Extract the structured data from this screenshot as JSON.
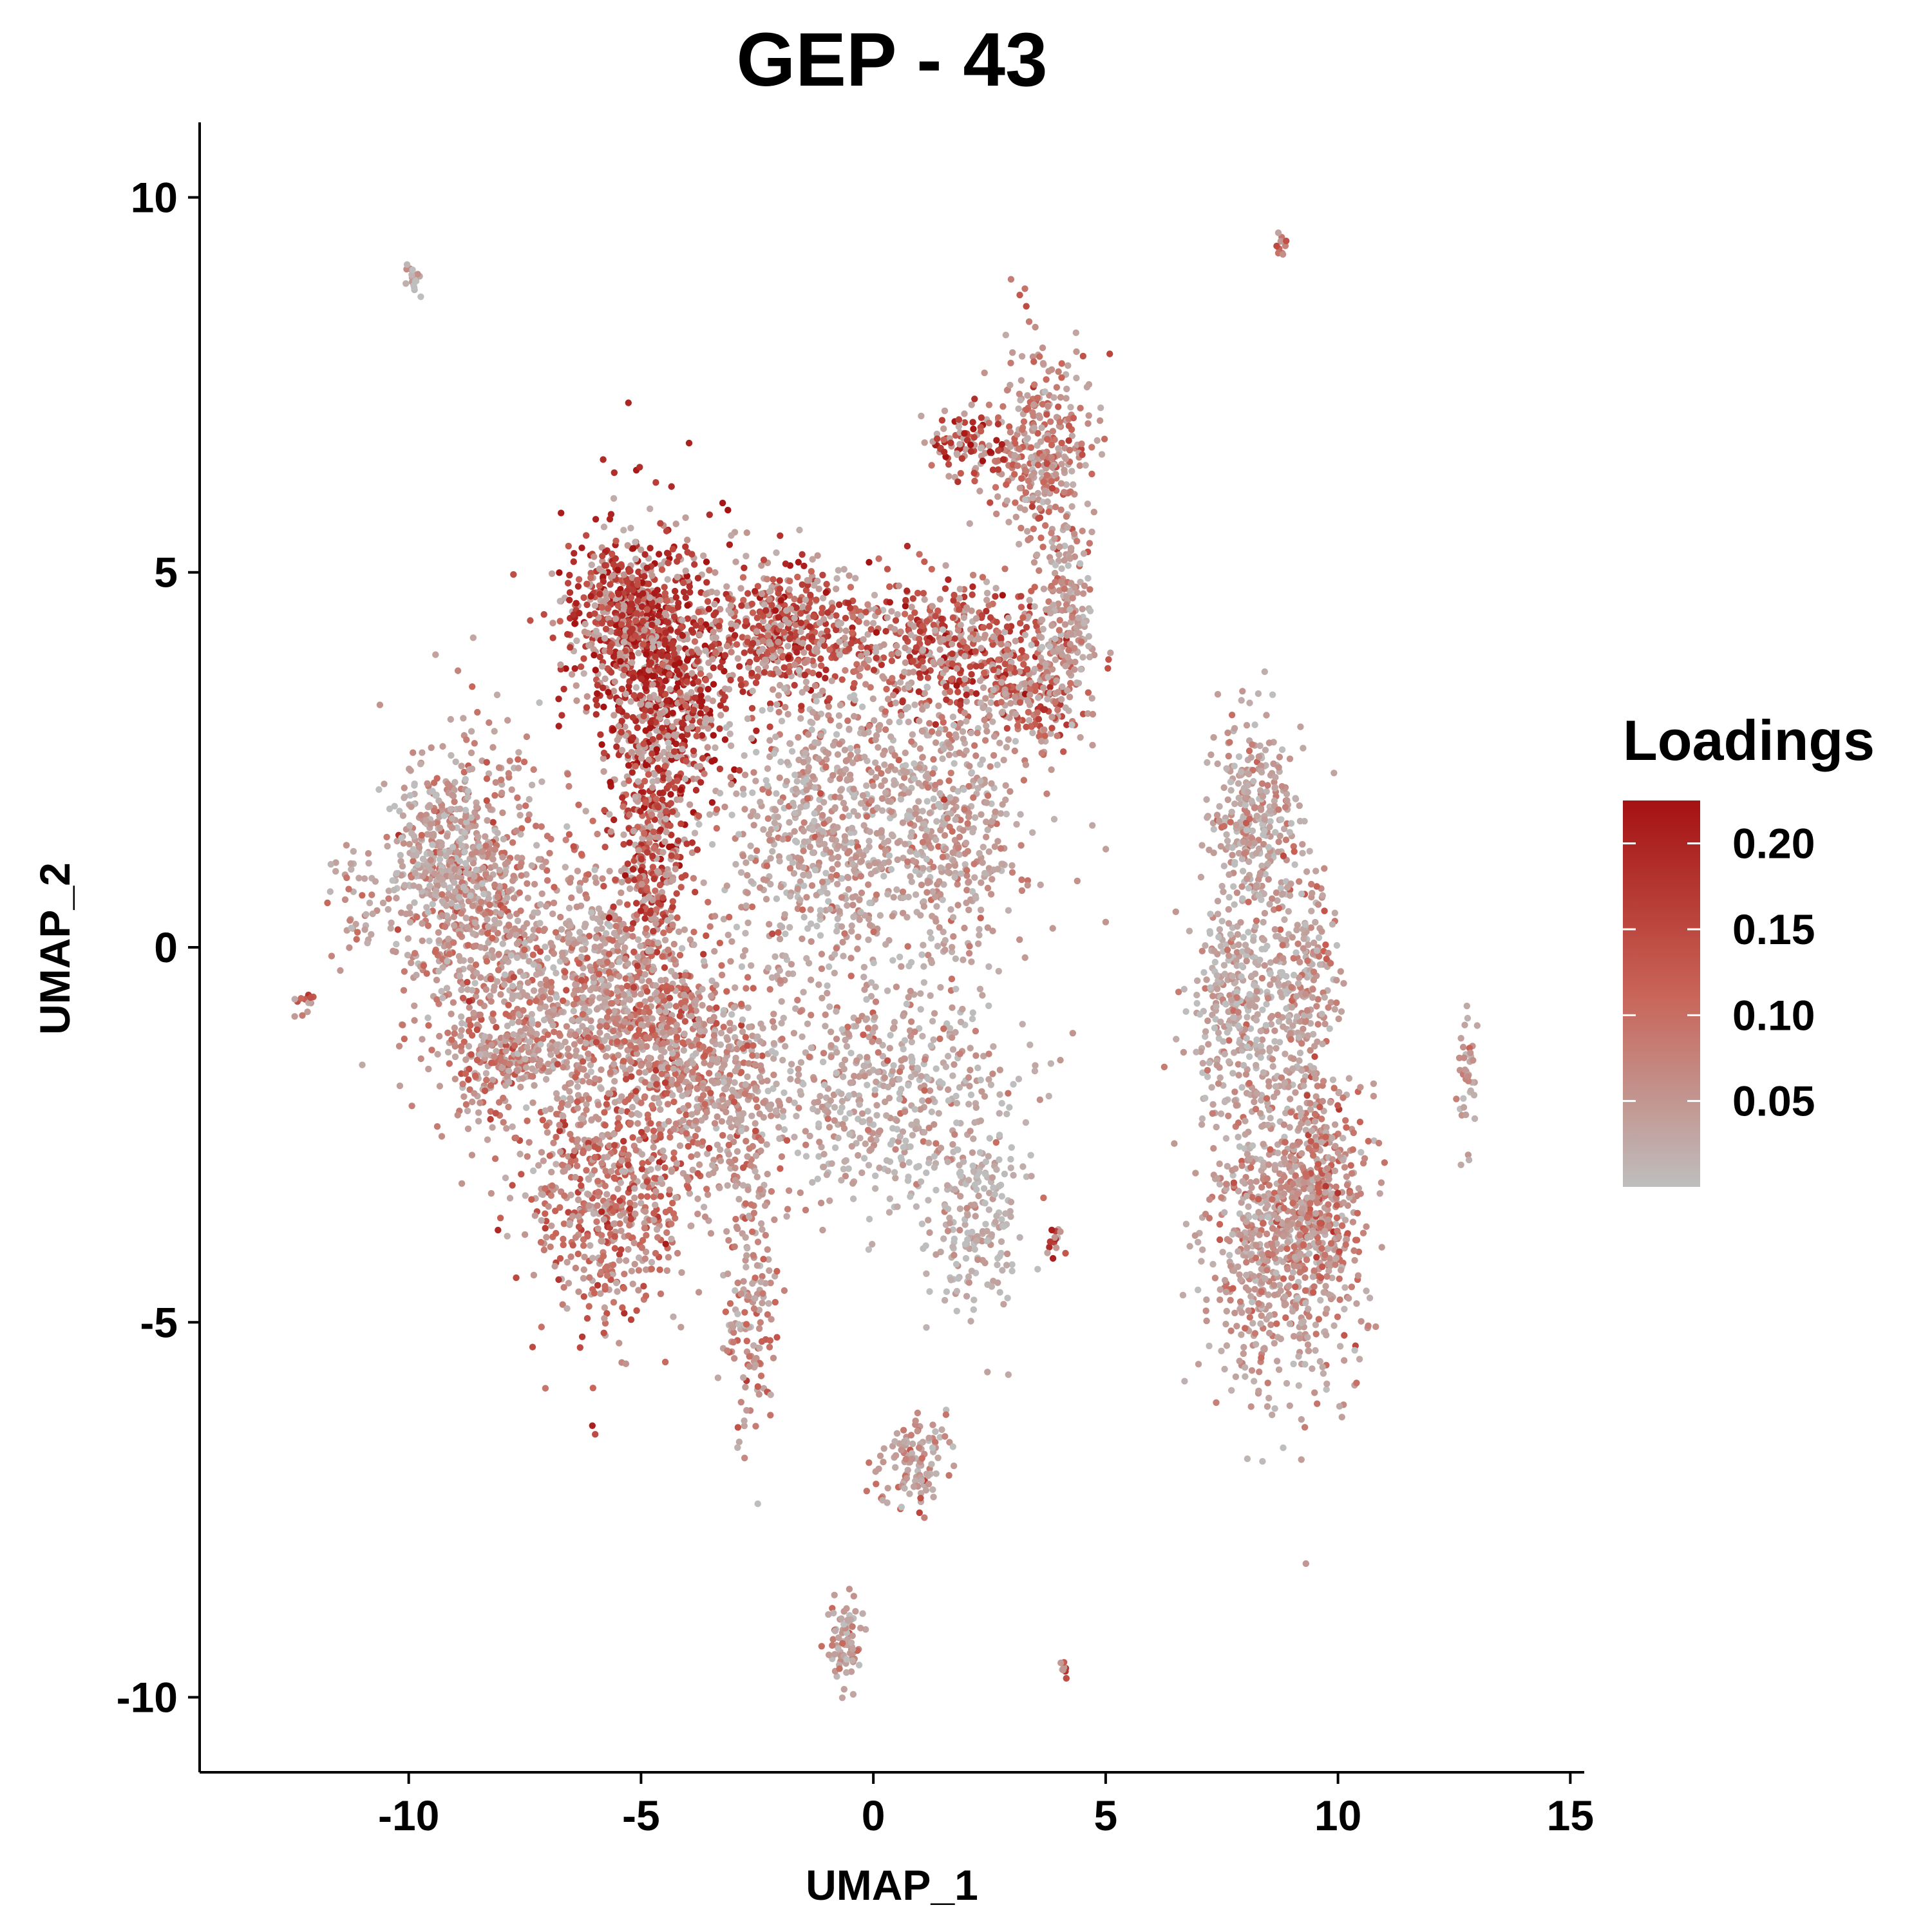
{
  "chart_data": {
    "type": "scatter",
    "title": "GEP - 43",
    "xlabel": "UMAP_1",
    "ylabel": "UMAP_2",
    "xlim": [
      -14.5,
      15.3
    ],
    "ylim": [
      -11,
      11
    ],
    "xticks": [
      -10,
      -5,
      0,
      5,
      10,
      15
    ],
    "yticks": [
      -10,
      -5,
      0,
      5,
      10
    ],
    "xtick_labels": [
      "-10",
      "-5",
      "0",
      "5",
      "10",
      "15"
    ],
    "ytick_labels": [
      "-10",
      "-5",
      "0",
      "5",
      "10"
    ],
    "grid": false,
    "legend": {
      "title": "Loadings",
      "placement": "right",
      "range": [
        0.0,
        0.225
      ],
      "breaks": [
        0.2,
        0.15,
        0.1,
        0.05
      ],
      "labels": [
        "0.20",
        "0.15",
        "0.10",
        "0.05"
      ],
      "low_color": "#bebebe",
      "high_color": "#a51212"
    },
    "clusters": [
      {
        "x": -4.6,
        "y": 3.6,
        "sx": 1.0,
        "sy": 1.3,
        "n": 900,
        "value": 0.19
      },
      {
        "x": -5.5,
        "y": 4.5,
        "sx": 0.8,
        "sy": 0.6,
        "n": 350,
        "value": 0.17
      },
      {
        "x": -2.0,
        "y": 4.2,
        "sx": 1.3,
        "sy": 0.6,
        "n": 500,
        "value": 0.15
      },
      {
        "x": 1.6,
        "y": 4.0,
        "sx": 1.3,
        "sy": 0.6,
        "n": 450,
        "value": 0.15
      },
      {
        "x": 3.6,
        "y": 3.5,
        "sx": 0.8,
        "sy": 0.6,
        "n": 200,
        "value": 0.13
      },
      {
        "x": -1.2,
        "y": 1.6,
        "sx": 1.4,
        "sy": 1.4,
        "n": 700,
        "value": 0.04
      },
      {
        "x": 1.6,
        "y": 1.8,
        "sx": 1.2,
        "sy": 1.2,
        "n": 500,
        "value": 0.05
      },
      {
        "x": 3.6,
        "y": 6.6,
        "sx": 0.7,
        "sy": 0.9,
        "n": 350,
        "value": 0.09
      },
      {
        "x": 4.1,
        "y": 4.5,
        "sx": 0.4,
        "sy": 0.8,
        "n": 160,
        "value": 0.05
      },
      {
        "x": 2.0,
        "y": 6.7,
        "sx": 0.6,
        "sy": 0.3,
        "n": 90,
        "value": 0.17
      },
      {
        "x": -8.6,
        "y": 0.6,
        "sx": 1.1,
        "sy": 1.5,
        "n": 650,
        "value": 0.07
      },
      {
        "x": -9.4,
        "y": 1.2,
        "sx": 0.7,
        "sy": 0.8,
        "n": 250,
        "value": 0.03
      },
      {
        "x": -8.0,
        "y": -1.5,
        "sx": 0.8,
        "sy": 0.6,
        "n": 200,
        "value": 0.09
      },
      {
        "x": -6.2,
        "y": -0.6,
        "sx": 1.3,
        "sy": 1.2,
        "n": 650,
        "value": 0.06
      },
      {
        "x": -4.8,
        "y": 1.1,
        "sx": 0.5,
        "sy": 1.1,
        "n": 280,
        "value": 0.15
      },
      {
        "x": -4.6,
        "y": -1.2,
        "sx": 0.9,
        "sy": 1.0,
        "n": 350,
        "value": 0.1
      },
      {
        "x": -5.7,
        "y": -3.3,
        "sx": 1.2,
        "sy": 1.2,
        "n": 600,
        "value": 0.11
      },
      {
        "x": -3.2,
        "y": -1.8,
        "sx": 1.0,
        "sy": 1.0,
        "n": 400,
        "value": 0.07
      },
      {
        "x": -2.7,
        "y": -4.8,
        "sx": 0.4,
        "sy": 1.2,
        "n": 160,
        "value": 0.07
      },
      {
        "x": 0.2,
        "y": -1.9,
        "sx": 1.7,
        "sy": 1.1,
        "n": 500,
        "value": 0.03
      },
      {
        "x": 2.2,
        "y": -3.5,
        "sx": 0.7,
        "sy": 1.0,
        "n": 220,
        "value": 0.02
      },
      {
        "x": 0.9,
        "y": -6.9,
        "sx": 0.5,
        "sy": 0.4,
        "n": 120,
        "value": 0.06
      },
      {
        "x": 8.2,
        "y": 1.7,
        "sx": 0.6,
        "sy": 0.9,
        "n": 320,
        "value": 0.04
      },
      {
        "x": 7.9,
        "y": -0.8,
        "sx": 0.7,
        "sy": 1.1,
        "n": 350,
        "value": 0.03
      },
      {
        "x": 9.3,
        "y": -0.5,
        "sx": 0.5,
        "sy": 1.1,
        "n": 220,
        "value": 0.05
      },
      {
        "x": 8.8,
        "y": -3.9,
        "sx": 1.1,
        "sy": 1.4,
        "n": 800,
        "value": 0.06
      },
      {
        "x": 9.6,
        "y": -3.2,
        "sx": 0.5,
        "sy": 0.9,
        "n": 250,
        "value": 0.09
      },
      {
        "x": -0.6,
        "y": -9.3,
        "sx": 0.25,
        "sy": 0.4,
        "n": 80,
        "value": 0.05
      },
      {
        "x": -9.9,
        "y": 8.9,
        "sx": 0.12,
        "sy": 0.1,
        "n": 20,
        "value": 0.03
      },
      {
        "x": 8.8,
        "y": 9.4,
        "sx": 0.08,
        "sy": 0.12,
        "n": 10,
        "value": 0.11
      },
      {
        "x": -12.2,
        "y": -0.7,
        "sx": 0.12,
        "sy": 0.12,
        "n": 16,
        "value": 0.12
      },
      {
        "x": 12.8,
        "y": -1.7,
        "sx": 0.15,
        "sy": 0.6,
        "n": 40,
        "value": 0.06
      },
      {
        "x": 4.1,
        "y": -9.6,
        "sx": 0.05,
        "sy": 0.1,
        "n": 8,
        "value": 0.16
      },
      {
        "x": 3.9,
        "y": -3.9,
        "sx": 0.1,
        "sy": 0.15,
        "n": 14,
        "value": 0.17
      },
      {
        "x": -11.2,
        "y": 0.6,
        "sx": 0.4,
        "sy": 0.5,
        "n": 40,
        "value": 0.06
      }
    ]
  }
}
